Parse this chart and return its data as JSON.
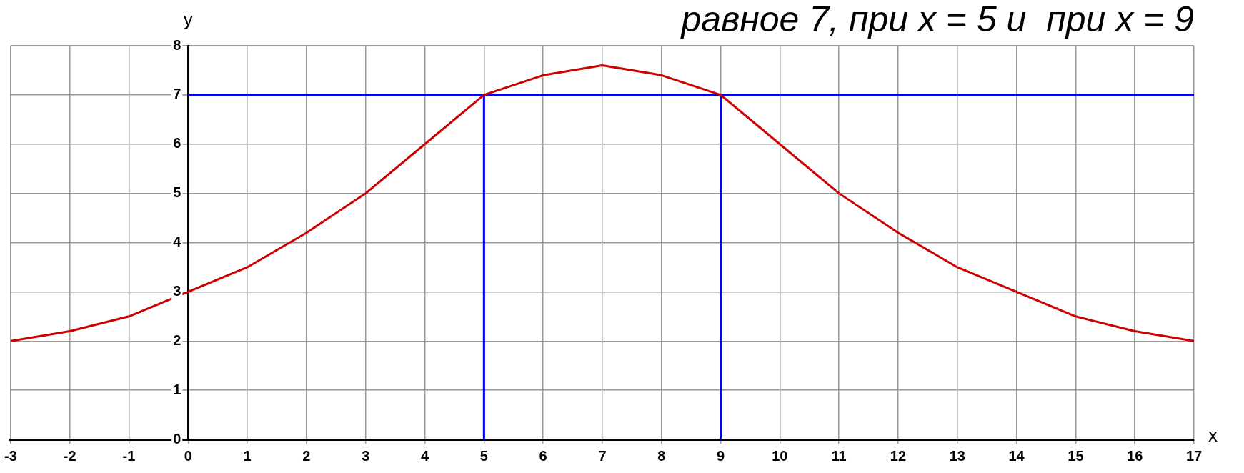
{
  "chart_data": {
    "type": "line",
    "title": "равное 7, при x = 5 и  при x = 9",
    "xlabel": "x",
    "ylabel": "y",
    "x": [
      -3,
      -2,
      -1,
      0,
      1,
      2,
      3,
      4,
      5,
      6,
      7,
      8,
      9,
      10,
      11,
      12,
      13,
      14,
      15,
      16,
      17
    ],
    "series": [
      {
        "color": "#cc0000",
        "values": [
          2,
          2.2,
          2.5,
          3,
          3.5,
          4.2,
          5,
          6,
          7,
          7.4,
          7.6,
          7.4,
          7,
          6,
          5,
          4.2,
          3.5,
          3,
          2.5,
          2.2,
          2
        ]
      },
      {
        "color": "#0000ff",
        "x": [
          0,
          17
        ],
        "values": [
          7,
          7
        ]
      },
      {
        "color": "#0000ff",
        "x": [
          5,
          5
        ],
        "values": [
          0,
          7
        ]
      },
      {
        "color": "#0000ff",
        "x": [
          9,
          9
        ],
        "values": [
          0,
          7
        ]
      }
    ],
    "xlim": [
      -3,
      17
    ],
    "xticks": [
      -3,
      -2,
      -1,
      0,
      1,
      2,
      3,
      4,
      5,
      6,
      7,
      8,
      9,
      10,
      11,
      12,
      13,
      14,
      15,
      16,
      17
    ],
    "ylim": [
      0,
      8
    ],
    "yticks": [
      0,
      1,
      2,
      3,
      4,
      5,
      6,
      7,
      8
    ],
    "grid": true,
    "legend": false,
    "line_style": "solid"
  }
}
